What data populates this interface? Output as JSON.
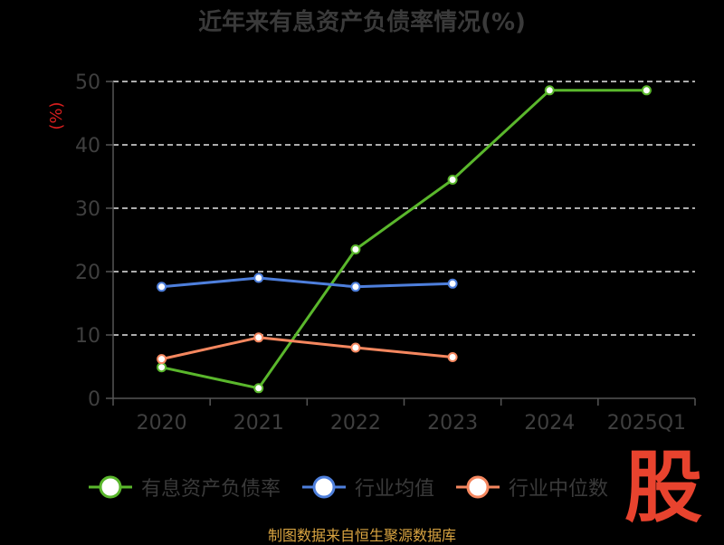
{
  "title": "近年来有息资产负债率情况(%)",
  "source": "制图数据来自恒生聚源数据库",
  "watermark": "股",
  "chart_data": {
    "type": "line",
    "categories": [
      "2020",
      "2021",
      "2022",
      "2023",
      "2024",
      "2025Q1"
    ],
    "ylabel": "(%)",
    "ylim": [
      0,
      50
    ],
    "yticks": [
      0,
      10,
      20,
      30,
      40,
      50
    ],
    "grid": true,
    "legend_position": "bottom",
    "series": [
      {
        "name": "有息资产负债率",
        "color": "#5ab72c",
        "values": [
          4.9,
          1.6,
          23.5,
          34.5,
          48.6,
          48.6
        ]
      },
      {
        "name": "行业均值",
        "color": "#4e7fdc",
        "values": [
          17.6,
          19.0,
          17.6,
          18.1,
          null,
          null
        ]
      },
      {
        "name": "行业中位数",
        "color": "#f5875f",
        "values": [
          6.2,
          9.6,
          8.0,
          6.5,
          null,
          null
        ]
      }
    ]
  }
}
